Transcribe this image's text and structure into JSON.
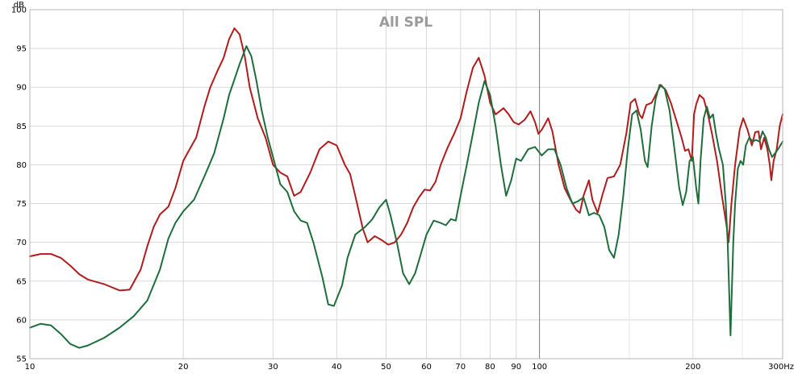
{
  "chart_data": {
    "type": "line",
    "title": "All SPL",
    "ylabel": "dB",
    "xunit": "Hz",
    "xscale": "log",
    "xlim": [
      10,
      300
    ],
    "ylim": [
      55,
      100
    ],
    "grid": true,
    "legend": "none",
    "x_ticks": [
      {
        "value": 10,
        "label": "10"
      },
      {
        "value": 20,
        "label": "20"
      },
      {
        "value": 30,
        "label": "30"
      },
      {
        "value": 40,
        "label": "40"
      },
      {
        "value": 50,
        "label": "50"
      },
      {
        "value": 60,
        "label": "60"
      },
      {
        "value": 70,
        "label": "70"
      },
      {
        "value": 80,
        "label": "80"
      },
      {
        "value": 90,
        "label": "90"
      },
      {
        "value": 100,
        "label": "100"
      },
      {
        "value": 200,
        "label": "200"
      },
      {
        "value": 300,
        "label": "300Hz"
      }
    ],
    "x_minor_grid": [
      150,
      250
    ],
    "y_ticks": [
      55,
      60,
      65,
      70,
      75,
      80,
      85,
      90,
      95,
      100
    ],
    "series": [
      {
        "color": "#b11c1c",
        "points": [
          [
            10,
            68.2
          ],
          [
            10.5,
            68.5
          ],
          [
            11,
            68.5
          ],
          [
            11.5,
            68.0
          ],
          [
            12,
            67.0
          ],
          [
            12.5,
            65.9
          ],
          [
            13,
            65.2
          ],
          [
            14,
            64.6
          ],
          [
            15,
            63.8
          ],
          [
            15.7,
            63.9
          ],
          [
            16.5,
            66.5
          ],
          [
            17,
            69.5
          ],
          [
            17.5,
            72.0
          ],
          [
            18,
            73.6
          ],
          [
            18.7,
            74.6
          ],
          [
            19.3,
            77.0
          ],
          [
            20,
            80.5
          ],
          [
            20.5,
            81.8
          ],
          [
            21.2,
            83.5
          ],
          [
            22,
            87.5
          ],
          [
            22.6,
            90.0
          ],
          [
            23.3,
            92.0
          ],
          [
            24,
            93.8
          ],
          [
            24.6,
            96.2
          ],
          [
            25.2,
            97.6
          ],
          [
            25.8,
            96.8
          ],
          [
            26.4,
            94.0
          ],
          [
            27,
            90.0
          ],
          [
            28,
            86.0
          ],
          [
            29,
            83.5
          ],
          [
            30,
            80.0
          ],
          [
            31,
            79.0
          ],
          [
            32,
            78.5
          ],
          [
            33,
            76.0
          ],
          [
            34,
            76.5
          ],
          [
            35.5,
            79.0
          ],
          [
            37,
            82.0
          ],
          [
            38.5,
            83.0
          ],
          [
            40,
            82.5
          ],
          [
            41.5,
            80.0
          ],
          [
            42.5,
            78.8
          ],
          [
            43.5,
            76.0
          ],
          [
            45,
            71.8
          ],
          [
            46,
            70.0
          ],
          [
            47.5,
            70.8
          ],
          [
            49,
            70.3
          ],
          [
            50.5,
            69.7
          ],
          [
            52,
            70.0
          ],
          [
            53.5,
            71.0
          ],
          [
            55,
            72.5
          ],
          [
            56.5,
            74.5
          ],
          [
            58,
            75.8
          ],
          [
            59.5,
            76.8
          ],
          [
            61,
            76.7
          ],
          [
            62.5,
            77.8
          ],
          [
            64,
            80.0
          ],
          [
            66,
            82.2
          ],
          [
            68,
            84.0
          ],
          [
            70,
            86.0
          ],
          [
            72,
            89.5
          ],
          [
            74,
            92.5
          ],
          [
            76,
            93.8
          ],
          [
            78,
            91.5
          ],
          [
            80,
            88.0
          ],
          [
            82,
            86.5
          ],
          [
            85,
            87.3
          ],
          [
            87,
            86.5
          ],
          [
            89,
            85.5
          ],
          [
            91,
            85.2
          ],
          [
            93.5,
            85.8
          ],
          [
            96,
            86.9
          ],
          [
            98,
            85.5
          ],
          [
            99.5,
            84.0
          ],
          [
            101,
            84.5
          ],
          [
            104,
            86.0
          ],
          [
            106,
            84.3
          ],
          [
            109,
            80.0
          ],
          [
            112,
            77.0
          ],
          [
            115,
            75.5
          ],
          [
            118,
            74.2
          ],
          [
            120,
            73.8
          ],
          [
            122,
            76.0
          ],
          [
            125,
            78.0
          ],
          [
            127,
            75.5
          ],
          [
            130,
            73.8
          ],
          [
            133,
            76.2
          ],
          [
            136,
            78.3
          ],
          [
            140,
            78.5
          ],
          [
            144,
            80.0
          ],
          [
            148,
            84.0
          ],
          [
            151,
            88.0
          ],
          [
            154,
            88.5
          ],
          [
            157,
            86.5
          ],
          [
            159,
            86.0
          ],
          [
            162,
            87.7
          ],
          [
            166,
            88.0
          ],
          [
            169,
            89.0
          ],
          [
            173,
            90.3
          ],
          [
            177,
            89.6
          ],
          [
            181,
            88.0
          ],
          [
            185,
            86.0
          ],
          [
            190,
            83.5
          ],
          [
            193,
            81.8
          ],
          [
            196,
            82.0
          ],
          [
            199,
            80.5
          ],
          [
            201,
            86.5
          ],
          [
            203,
            87.8
          ],
          [
            206,
            89.0
          ],
          [
            210,
            88.5
          ],
          [
            214,
            86.5
          ],
          [
            218,
            84.0
          ],
          [
            223,
            80.5
          ],
          [
            228,
            76.0
          ],
          [
            233,
            72.0
          ],
          [
            235,
            70.0
          ],
          [
            238,
            75.0
          ],
          [
            242,
            80.0
          ],
          [
            247,
            84.5
          ],
          [
            251,
            86.0
          ],
          [
            256,
            84.5
          ],
          [
            261,
            82.5
          ],
          [
            265,
            84.2
          ],
          [
            269,
            84.3
          ],
          [
            272,
            82.0
          ],
          [
            276,
            83.5
          ],
          [
            280,
            82.0
          ],
          [
            283,
            80.0
          ],
          [
            285,
            78.0
          ],
          [
            288,
            80.5
          ],
          [
            292,
            82.0
          ],
          [
            296,
            85.0
          ],
          [
            300,
            86.5
          ]
        ]
      },
      {
        "color": "#1e6e3c",
        "points": [
          [
            10,
            59.0
          ],
          [
            10.5,
            59.5
          ],
          [
            11,
            59.3
          ],
          [
            11.5,
            58.2
          ],
          [
            12,
            56.9
          ],
          [
            12.5,
            56.4
          ],
          [
            13,
            56.7
          ],
          [
            14,
            57.7
          ],
          [
            15,
            59.0
          ],
          [
            16,
            60.5
          ],
          [
            17,
            62.5
          ],
          [
            18,
            66.5
          ],
          [
            18.7,
            70.5
          ],
          [
            19.3,
            72.5
          ],
          [
            20,
            74.0
          ],
          [
            21,
            75.5
          ],
          [
            22,
            78.5
          ],
          [
            22.5,
            80.0
          ],
          [
            23,
            81.5
          ],
          [
            24,
            86.0
          ],
          [
            24.6,
            89.0
          ],
          [
            25.2,
            91.0
          ],
          [
            25.8,
            93.0
          ],
          [
            26.6,
            95.3
          ],
          [
            27.2,
            94.0
          ],
          [
            27.8,
            91.0
          ],
          [
            28.5,
            87.0
          ],
          [
            29.3,
            83.5
          ],
          [
            30,
            81.0
          ],
          [
            31,
            77.5
          ],
          [
            32,
            76.5
          ],
          [
            33,
            74.0
          ],
          [
            34,
            72.8
          ],
          [
            35,
            72.5
          ],
          [
            36,
            70.0
          ],
          [
            37.5,
            65.5
          ],
          [
            38.5,
            62.0
          ],
          [
            39.5,
            61.8
          ],
          [
            41,
            64.5
          ],
          [
            42,
            68.0
          ],
          [
            43.5,
            71.0
          ],
          [
            45.5,
            72.0
          ],
          [
            47,
            73.0
          ],
          [
            48.5,
            74.5
          ],
          [
            50,
            75.5
          ],
          [
            51,
            73.5
          ],
          [
            52.5,
            70.0
          ],
          [
            54,
            66.0
          ],
          [
            55.5,
            64.6
          ],
          [
            57,
            66.0
          ],
          [
            58.5,
            68.5
          ],
          [
            60,
            71.0
          ],
          [
            62,
            72.8
          ],
          [
            64,
            72.5
          ],
          [
            65.5,
            72.2
          ],
          [
            67,
            73.0
          ],
          [
            68.5,
            72.8
          ],
          [
            70,
            76.0
          ],
          [
            72,
            80.0
          ],
          [
            74,
            84.0
          ],
          [
            76,
            88.0
          ],
          [
            78,
            90.8
          ],
          [
            80,
            89.0
          ],
          [
            82,
            85.0
          ],
          [
            84,
            80.0
          ],
          [
            86,
            76.0
          ],
          [
            88,
            78.0
          ],
          [
            90,
            80.8
          ],
          [
            92,
            80.5
          ],
          [
            95,
            82.0
          ],
          [
            98,
            82.3
          ],
          [
            101,
            81.2
          ],
          [
            104,
            82.0
          ],
          [
            107,
            82.0
          ],
          [
            110,
            80.0
          ],
          [
            113,
            77.0
          ],
          [
            116,
            75.0
          ],
          [
            119,
            75.3
          ],
          [
            122,
            75.8
          ],
          [
            125,
            73.5
          ],
          [
            128,
            73.8
          ],
          [
            131,
            73.5
          ],
          [
            134,
            72.0
          ],
          [
            137,
            69.0
          ],
          [
            140,
            68.0
          ],
          [
            143,
            71.0
          ],
          [
            146,
            76.0
          ],
          [
            149,
            82.0
          ],
          [
            152,
            86.5
          ],
          [
            155,
            87.0
          ],
          [
            158,
            84.5
          ],
          [
            161,
            80.5
          ],
          [
            163,
            79.7
          ],
          [
            166,
            85.0
          ],
          [
            169,
            88.5
          ],
          [
            172,
            90.3
          ],
          [
            176,
            89.8
          ],
          [
            180,
            87.0
          ],
          [
            184,
            82.0
          ],
          [
            188,
            77.0
          ],
          [
            191,
            74.8
          ],
          [
            194,
            76.5
          ],
          [
            197,
            80.5
          ],
          [
            200,
            81.0
          ],
          [
            203,
            77.0
          ],
          [
            205,
            75.0
          ],
          [
            207,
            80.5
          ],
          [
            210,
            86.0
          ],
          [
            213,
            87.5
          ],
          [
            216,
            86.0
          ],
          [
            219,
            86.5
          ],
          [
            222,
            84.0
          ],
          [
            225,
            82.0
          ],
          [
            229,
            80.0
          ],
          [
            232,
            75.0
          ],
          [
            234,
            70.0
          ],
          [
            236,
            62.0
          ],
          [
            237,
            58.0
          ],
          [
            238,
            62.0
          ],
          [
            240,
            70.0
          ],
          [
            242,
            75.0
          ],
          [
            245,
            79.5
          ],
          [
            248,
            80.5
          ],
          [
            251,
            80.0
          ],
          [
            254,
            82.5
          ],
          [
            258,
            83.5
          ],
          [
            262,
            83.0
          ],
          [
            266,
            83.2
          ],
          [
            270,
            83.0
          ],
          [
            274,
            84.3
          ],
          [
            278,
            83.5
          ],
          [
            282,
            82.0
          ],
          [
            286,
            81.0
          ],
          [
            290,
            81.5
          ],
          [
            295,
            82.2
          ],
          [
            300,
            83.0
          ]
        ]
      }
    ]
  }
}
